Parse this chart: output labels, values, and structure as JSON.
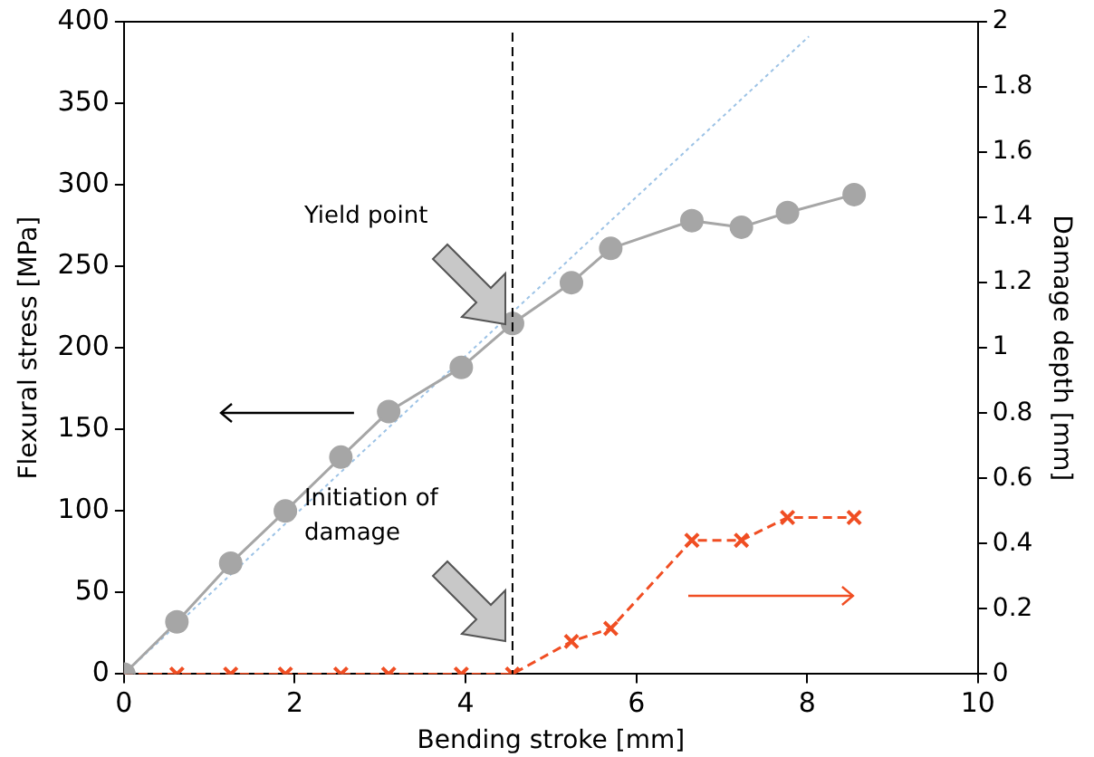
{
  "chart_data": {
    "type": "line",
    "xlabel": "Bending stroke [mm]",
    "ylabel": "Flexural stress [MPa]",
    "y2label": "Damage depth [mm]",
    "x": [
      0,
      0.62,
      1.25,
      1.89,
      2.54,
      3.1,
      3.95,
      4.55,
      5.24,
      5.7,
      6.65,
      7.23,
      7.77,
      8.55
    ],
    "series": [
      {
        "color": "#a6a6a6",
        "marker": "circle",
        "line_style": "solid",
        "values": [
          0,
          32,
          68,
          100,
          133,
          161,
          188,
          215,
          240,
          261,
          278,
          274,
          283,
          294
        ]
      },
      {
        "axis": "y2",
        "color": "#f04e23",
        "marker": "cross",
        "line_style": "dashed",
        "values": [
          0,
          0,
          0,
          0,
          0,
          0,
          0,
          0,
          0.1,
          0.14,
          0.41,
          0.41,
          0.48,
          0.48
        ]
      },
      {
        "color": "#9dc3e6",
        "marker": "none",
        "line_style": "dotted",
        "x": [
          0,
          8.02
        ],
        "values": [
          0,
          391
        ]
      }
    ],
    "xlim": [
      0,
      10
    ],
    "xticks": [
      0,
      2,
      4,
      6,
      8,
      10
    ],
    "ylim": [
      0,
      400
    ],
    "yticks": [
      0,
      50,
      100,
      150,
      200,
      250,
      300,
      350,
      400
    ],
    "y2lim": [
      0,
      2
    ],
    "y2ticks": [
      0,
      0.2,
      0.4,
      0.6,
      0.8,
      1,
      1.2,
      1.4,
      1.6,
      1.8,
      2
    ],
    "ref_lines": [
      {
        "axis": "x",
        "value": 4.55,
        "color": "#000000",
        "line_style": "dashed"
      }
    ],
    "annotations": [
      "Yield point",
      "Initiation of damage"
    ],
    "grid": false,
    "legend": false
  }
}
